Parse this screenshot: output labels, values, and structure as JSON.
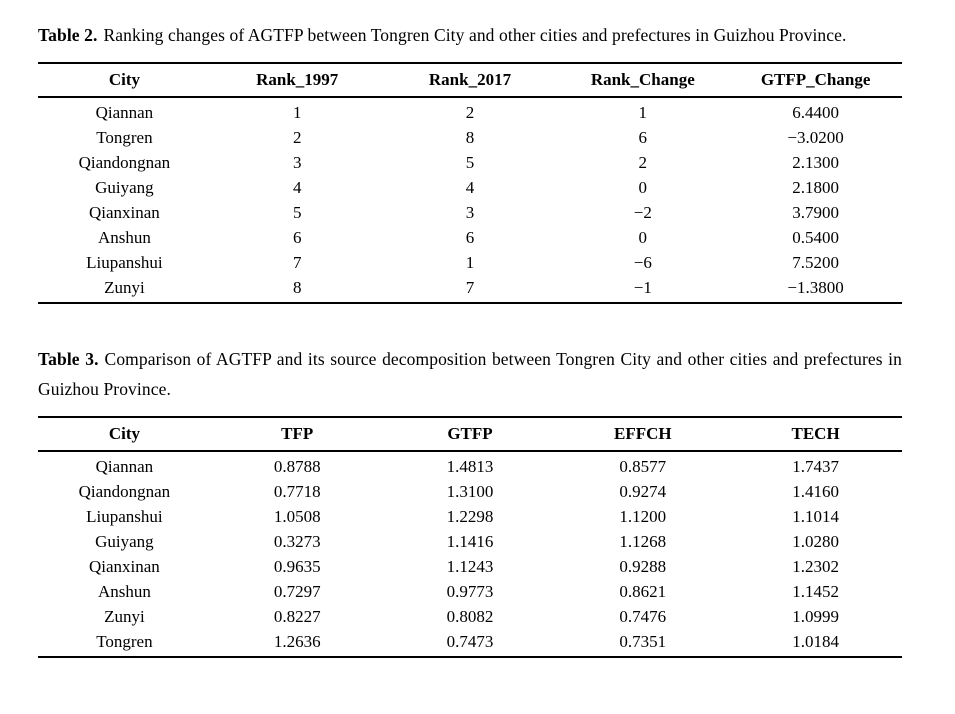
{
  "page": {
    "background_color": "#ffffff",
    "text_color": "#000000"
  },
  "table2": {
    "caption_label": "Table 2.",
    "caption_text": "Ranking changes of AGTFP between Tongren City and other cities and prefectures in Guizhou Province.",
    "columns": [
      "City",
      "Rank_1997",
      "Rank_2017",
      "Rank_Change",
      "GTFP_Change"
    ],
    "rows": [
      [
        "Qiannan",
        "1",
        "2",
        "1",
        "6.4400"
      ],
      [
        "Tongren",
        "2",
        "8",
        "6",
        "−3.0200"
      ],
      [
        "Qiandongnan",
        "3",
        "5",
        "2",
        "2.1300"
      ],
      [
        "Guiyang",
        "4",
        "4",
        "0",
        "2.1800"
      ],
      [
        "Qianxinan",
        "5",
        "3",
        "−2",
        "3.7900"
      ],
      [
        "Anshun",
        "6",
        "6",
        "0",
        "0.5400"
      ],
      [
        "Liupanshui",
        "7",
        "1",
        "−6",
        "7.5200"
      ],
      [
        "Zunyi",
        "8",
        "7",
        "−1",
        "−1.3800"
      ]
    ]
  },
  "table3": {
    "caption_label": "Table 3.",
    "caption_text": "Comparison of AGTFP and its source decomposition between Tongren City and other cities and prefectures in Guizhou Province.",
    "columns": [
      "City",
      "TFP",
      "GTFP",
      "EFFCH",
      "TECH"
    ],
    "rows": [
      [
        "Qiannan",
        "0.8788",
        "1.4813",
        "0.8577",
        "1.7437"
      ],
      [
        "Qiandongnan",
        "0.7718",
        "1.3100",
        "0.9274",
        "1.4160"
      ],
      [
        "Liupanshui",
        "1.0508",
        "1.2298",
        "1.1200",
        "1.1014"
      ],
      [
        "Guiyang",
        "0.3273",
        "1.1416",
        "1.1268",
        "1.0280"
      ],
      [
        "Qianxinan",
        "0.9635",
        "1.1243",
        "0.9288",
        "1.2302"
      ],
      [
        "Anshun",
        "0.7297",
        "0.9773",
        "0.8621",
        "1.1452"
      ],
      [
        "Zunyi",
        "0.8227",
        "0.8082",
        "0.7476",
        "1.0999"
      ],
      [
        "Tongren",
        "1.2636",
        "0.7473",
        "0.7351",
        "1.0184"
      ]
    ]
  },
  "chart_data": [
    {
      "type": "table",
      "title": "Table 2. Ranking changes of AGTFP between Tongren City and other cities and prefectures in Guizhou Province.",
      "columns": [
        "City",
        "Rank_1997",
        "Rank_2017",
        "Rank_Change",
        "GTFP_Change"
      ],
      "rows": [
        [
          "Qiannan",
          1,
          2,
          1,
          6.44
        ],
        [
          "Tongren",
          2,
          8,
          6,
          -3.02
        ],
        [
          "Qiandongnan",
          3,
          5,
          2,
          2.13
        ],
        [
          "Guiyang",
          4,
          4,
          0,
          2.18
        ],
        [
          "Qianxinan",
          5,
          3,
          -2,
          3.79
        ],
        [
          "Anshun",
          6,
          6,
          0,
          0.54
        ],
        [
          "Liupanshui",
          7,
          1,
          -6,
          7.52
        ],
        [
          "Zunyi",
          8,
          7,
          -1,
          -1.38
        ]
      ]
    },
    {
      "type": "table",
      "title": "Table 3. Comparison of AGTFP and its source decomposition between Tongren City and other cities and prefectures in Guizhou Province.",
      "columns": [
        "City",
        "TFP",
        "GTFP",
        "EFFCH",
        "TECH"
      ],
      "rows": [
        [
          "Qiannan",
          0.8788,
          1.4813,
          0.8577,
          1.7437
        ],
        [
          "Qiandongnan",
          0.7718,
          1.31,
          0.9274,
          1.416
        ],
        [
          "Liupanshui",
          1.0508,
          1.2298,
          1.12,
          1.1014
        ],
        [
          "Guiyang",
          0.3273,
          1.1416,
          1.1268,
          1.028
        ],
        [
          "Qianxinan",
          0.9635,
          1.1243,
          0.9288,
          1.2302
        ],
        [
          "Anshun",
          0.7297,
          0.9773,
          0.8621,
          1.1452
        ],
        [
          "Zunyi",
          0.8227,
          0.8082,
          0.7476,
          1.0999
        ],
        [
          "Tongren",
          1.2636,
          0.7473,
          0.7351,
          1.0184
        ]
      ]
    }
  ]
}
